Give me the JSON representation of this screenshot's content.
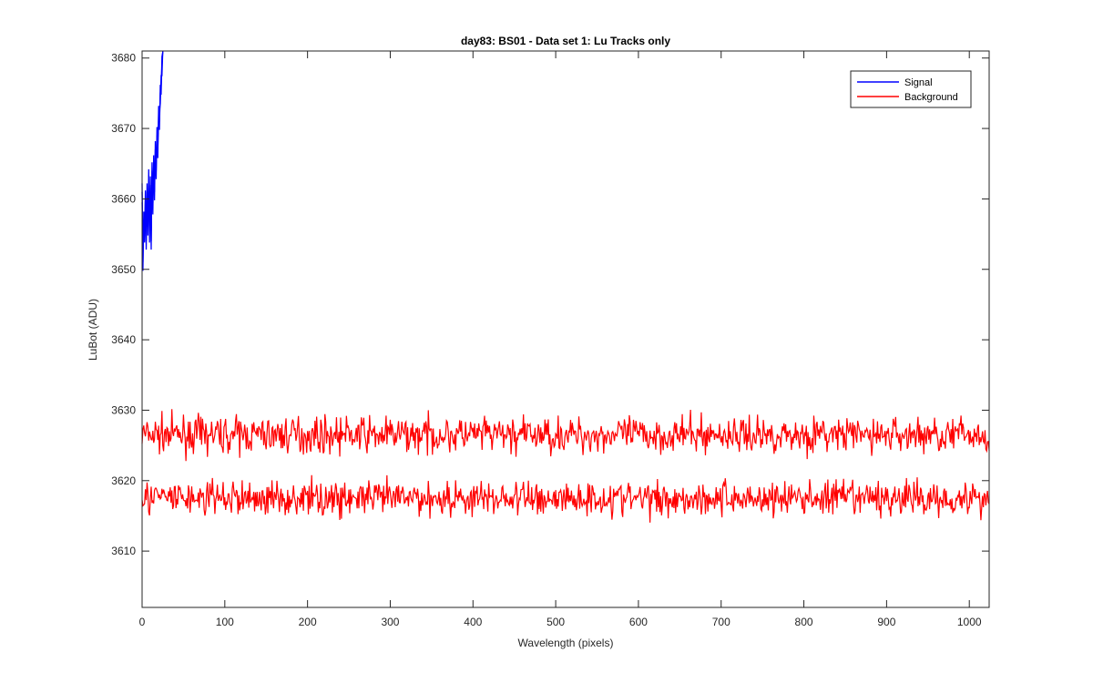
{
  "chart_data": {
    "type": "line",
    "title": "day83: BS01 - Data set 1: Lu Tracks only",
    "xlabel": "Wavelength (pixels)",
    "ylabel": "LuBot (ADU)",
    "xlim": [
      0,
      1024
    ],
    "ylim": [
      3602,
      3681
    ],
    "xticks": [
      0,
      100,
      200,
      300,
      400,
      500,
      600,
      700,
      800,
      900,
      1000
    ],
    "yticks": [
      3610,
      3620,
      3630,
      3640,
      3650,
      3660,
      3670,
      3680
    ],
    "grid": false,
    "legend": {
      "position": "top-right",
      "entries": [
        "Signal",
        "Background"
      ]
    },
    "series": [
      {
        "name": "Signal",
        "color": "#0000ff",
        "x": [
          0,
          1,
          2,
          3,
          4,
          5,
          6,
          7,
          8,
          9,
          10,
          11,
          12,
          13,
          14,
          15,
          16,
          17,
          18,
          19,
          20,
          21,
          22,
          23,
          24,
          25
        ],
        "y": [
          3661,
          3651,
          3657,
          3655,
          3660,
          3654,
          3661,
          3656,
          3663,
          3655,
          3662,
          3654,
          3664,
          3659,
          3665,
          3661,
          3667,
          3664,
          3669,
          3667,
          3672,
          3671,
          3675,
          3676,
          3679,
          3682
        ]
      },
      {
        "name": "Background",
        "color": "#ff0000",
        "description_level": "upper band",
        "mean": 3626.5,
        "amplitude": 2.0,
        "x_range": [
          0,
          1024
        ]
      },
      {
        "name": "Background",
        "color": "#ff0000",
        "description_level": "lower band",
        "mean": 3617.5,
        "amplitude": 2.0,
        "x_range": [
          0,
          1024
        ]
      }
    ]
  }
}
